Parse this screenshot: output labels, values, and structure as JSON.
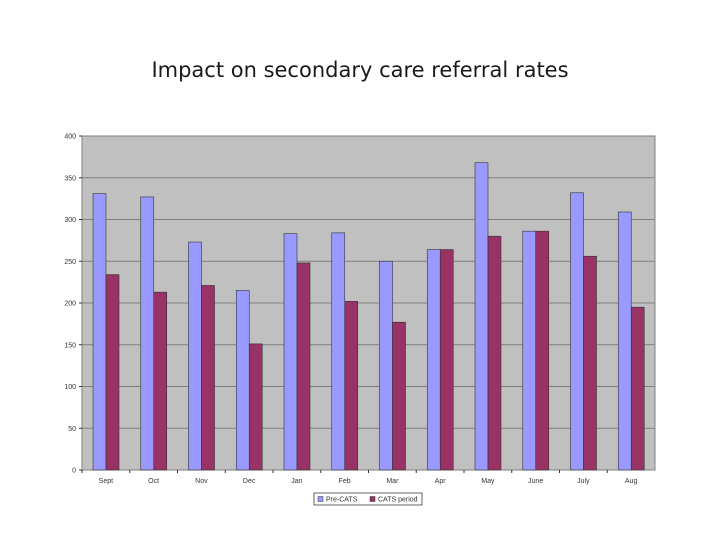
{
  "title": "Impact on secondary care referral rates",
  "chart_data": {
    "type": "bar",
    "title": "",
    "xlabel": "",
    "ylabel": "",
    "ylim": [
      0,
      400
    ],
    "yticks": [
      0,
      50,
      100,
      150,
      200,
      250,
      300,
      350,
      400
    ],
    "grid": true,
    "legend_position": "bottom",
    "categories": [
      "Sept",
      "Oct",
      "Nov",
      "Dec",
      "Jan",
      "Feb",
      "Mar",
      "Apr",
      "May",
      "June",
      "July",
      "Aug"
    ],
    "series": [
      {
        "name": "Pre-CATS",
        "color": "#9999ff",
        "values": [
          331,
          327,
          273,
          215,
          283,
          284,
          250,
          264,
          368,
          286,
          332,
          309
        ]
      },
      {
        "name": "CATS period",
        "color": "#993366",
        "values": [
          234,
          213,
          221,
          151,
          248,
          202,
          177,
          264,
          280,
          286,
          256,
          195
        ]
      }
    ],
    "plot_background": "#c0c0c0",
    "gridline_color": "#7f7f7f"
  }
}
